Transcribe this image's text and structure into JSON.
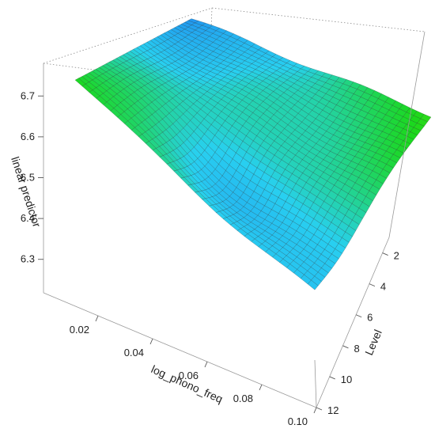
{
  "chart_data": {
    "type": "surface3d",
    "title": "",
    "xlabel": "log_phono_freq",
    "ylabel": "Level",
    "zlabel": "linear predictor",
    "xlim": [
      0.0,
      0.1
    ],
    "ylim": [
      1,
      12
    ],
    "zlim": [
      6.22,
      6.78
    ],
    "x_ticks": [
      0.02,
      0.04,
      0.06,
      0.08,
      0.1
    ],
    "x_tick_labels": [
      "0.02",
      "0.04",
      "0.06",
      "0.08",
      "0.10"
    ],
    "y_ticks": [
      2,
      4,
      6,
      8,
      10,
      12
    ],
    "y_tick_labels": [
      "2",
      "4",
      "6",
      "8",
      "10",
      "12"
    ],
    "z_ticks": [
      6.3,
      6.4,
      6.5,
      6.6,
      6.7
    ],
    "z_tick_labels": [
      "6.3",
      "6.4",
      "6.5",
      "6.6",
      "6.7"
    ],
    "color_scale": [
      "#3a0ca3",
      "#2a3ee8",
      "#1f8cf0",
      "#28d0f0",
      "#1bd81b",
      "#e5f024",
      "#fbe3a6"
    ],
    "mesh_color": "#1a1a1a",
    "grid": false,
    "corner_values": [
      {
        "x": 0.0,
        "level": 1,
        "z": 6.6
      },
      {
        "x": 0.0,
        "level": 12,
        "z": 6.43
      },
      {
        "x": 0.1,
        "level": 12,
        "z": 6.25
      },
      {
        "x": 0.1,
        "level": 1,
        "z": 6.76
      }
    ]
  }
}
